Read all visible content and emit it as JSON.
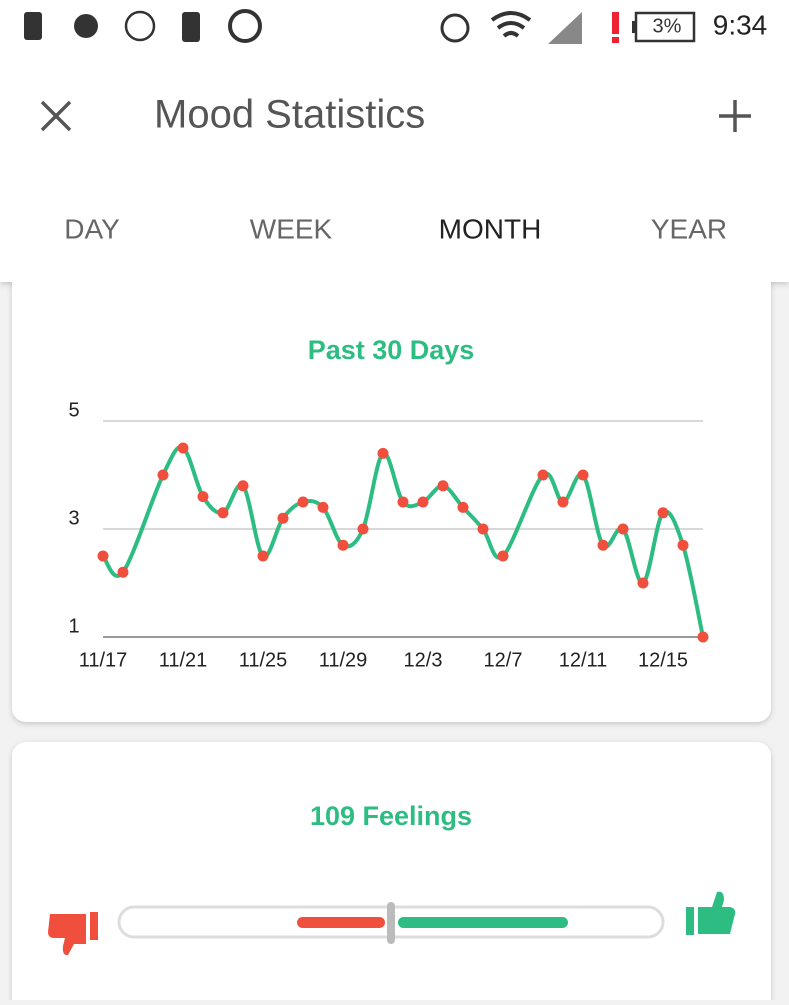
{
  "status_bar": {
    "battery": "3%",
    "time": "9:34"
  },
  "app_bar": {
    "title": "Mood Statistics"
  },
  "tabs": [
    "DAY",
    "WEEK",
    "MONTH",
    "YEAR"
  ],
  "chart_data": {
    "type": "line",
    "title": "Past 30 Days",
    "x": [
      0,
      1,
      3,
      4,
      5,
      6,
      7,
      8,
      9,
      10,
      11,
      12,
      13,
      14,
      15,
      16,
      17,
      18,
      19,
      20,
      22,
      23,
      24,
      25,
      26,
      27,
      28,
      29,
      30
    ],
    "series": [
      {
        "color": "#2dbd83",
        "marker_color": "#f04f3e",
        "values": [
          2.5,
          2.2,
          4.0,
          4.5,
          3.6,
          3.3,
          3.8,
          2.5,
          3.2,
          3.5,
          3.4,
          2.7,
          3.0,
          4.4,
          3.5,
          3.5,
          3.8,
          3.4,
          3.0,
          2.5,
          4.0,
          3.5,
          4.0,
          2.7,
          3.0,
          2.0,
          3.3,
          2.7,
          1.0
        ]
      }
    ],
    "xlim": [
      0,
      30
    ],
    "xticks": [
      {
        "value": 0,
        "label": "11/17"
      },
      {
        "value": 4,
        "label": "11/21"
      },
      {
        "value": 8,
        "label": "11/25"
      },
      {
        "value": 12,
        "label": "11/29"
      },
      {
        "value": 16,
        "label": "12/3"
      },
      {
        "value": 20,
        "label": "12/7"
      },
      {
        "value": 24,
        "label": "12/11"
      },
      {
        "value": 28,
        "label": "12/15"
      }
    ],
    "ylim": [
      1,
      5
    ],
    "yticks": [
      1,
      3,
      5
    ],
    "grid": true
  },
  "feelings": {
    "title": "109 Feelings"
  }
}
